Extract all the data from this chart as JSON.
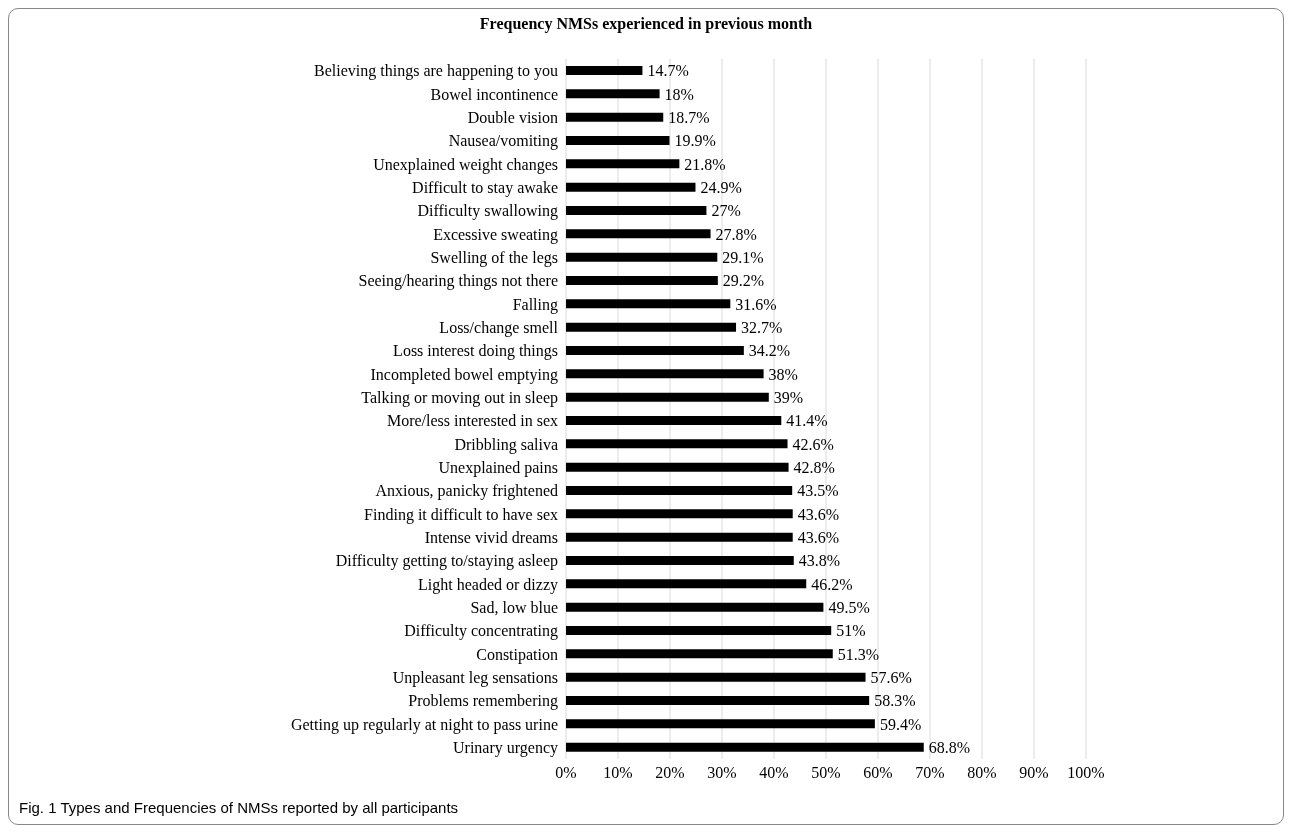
{
  "chart_data": {
    "type": "bar",
    "orientation": "horizontal",
    "title": "Frequency NMSs experienced in previous month",
    "categories": [
      "Believing things are happening to you",
      "Bowel incontinence",
      "Double vision",
      "Nausea/vomiting",
      "Unexplained weight changes",
      "Difficult to stay awake",
      "Difficulty swallowing",
      "Excessive sweating",
      "Swelling of the legs",
      "Seeing/hearing things not there",
      "Falling",
      "Loss/change smell",
      "Loss interest doing things",
      "Incompleted bowel emptying",
      "Talking or moving out in sleep",
      "More/less interested in sex",
      "Dribbling saliva",
      "Unexplained pains",
      "Anxious, panicky frightened",
      "Finding it difficult to have sex",
      "Intense vivid dreams",
      "Difficulty getting to/staying asleep",
      "Light headed or dizzy",
      "Sad, low blue",
      "Difficulty concentrating",
      "Constipation",
      "Unpleasant leg sensations",
      "Problems remembering",
      "Getting up regularly at night to pass urine",
      "Urinary urgency"
    ],
    "values": [
      14.7,
      18,
      18.7,
      19.9,
      21.8,
      24.9,
      27,
      27.8,
      29.1,
      29.2,
      31.6,
      32.7,
      34.2,
      38,
      39,
      41.4,
      42.6,
      42.8,
      43.5,
      43.6,
      43.6,
      43.8,
      46.2,
      49.5,
      51,
      51.3,
      57.6,
      58.3,
      59.4,
      68.8
    ],
    "value_labels": [
      "14.7%",
      "18%",
      "18.7%",
      "19.9%",
      "21.8%",
      "24.9%",
      "27%",
      "27.8%",
      "29.1%",
      "29.2%",
      "31.6%",
      "32.7%",
      "34.2%",
      "38%",
      "39%",
      "41.4%",
      "42.6%",
      "42.8%",
      "43.5%",
      "43.6%",
      "43.6%",
      "43.8%",
      "46.2%",
      "49.5%",
      "51%",
      "51.3%",
      "57.6%",
      "58.3%",
      "59.4%",
      "68.8%"
    ],
    "color": "#000000",
    "xlim": [
      0,
      100
    ],
    "xticks": [
      {
        "value": 0,
        "label": "0%"
      },
      {
        "value": 10,
        "label": "10%"
      },
      {
        "value": 20,
        "label": "20%"
      },
      {
        "value": 30,
        "label": "30%"
      },
      {
        "value": 40,
        "label": "40%"
      },
      {
        "value": 50,
        "label": "50%"
      },
      {
        "value": 60,
        "label": "60%"
      },
      {
        "value": 70,
        "label": "70%"
      },
      {
        "value": 80,
        "label": "80%"
      },
      {
        "value": 90,
        "label": "90%"
      },
      {
        "value": 100,
        "label": "100%"
      }
    ],
    "grid": "x",
    "legend": false,
    "annotations": [
      "Fig. 1 Types and Frequencies of NMSs reported by all participants"
    ]
  }
}
